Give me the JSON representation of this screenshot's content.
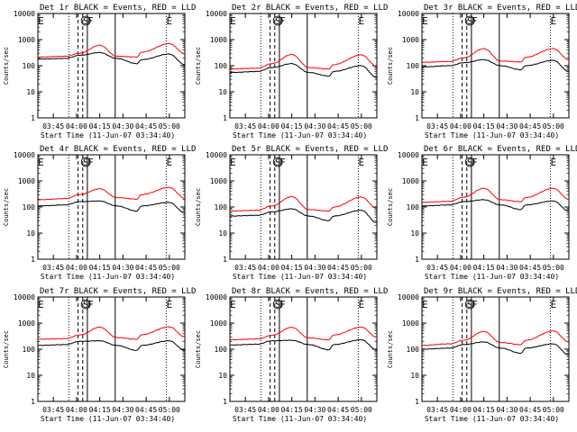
{
  "window_title": "",
  "chart_data": [
    {
      "type": "line",
      "title": "Det 1r BLACK = Events, RED = LLD",
      "ylabel": "Counts/sec",
      "xlabel": "Start Time (11-Jun-07 03:34:40)",
      "yscale": "log",
      "ylim": [
        1,
        10000
      ],
      "yticks": [
        "1",
        "10",
        "100",
        "1000",
        "10000"
      ],
      "xticks": [
        "03:45",
        "04:00",
        "04:15",
        "04:30",
        "04:45",
        "05:00"
      ],
      "markers": [
        "E",
        "S",
        "F",
        "E"
      ],
      "series": [
        {
          "color": "#ff0000",
          "values": [
            215,
            230,
            300,
            610,
            230,
            215,
            330,
            700,
            290
          ]
        },
        {
          "color": "#000000",
          "values": [
            180,
            190,
            250,
            320,
            190,
            120,
            170,
            280,
            110
          ]
        }
      ]
    },
    {
      "type": "line",
      "title": "Det 2r BLACK = Events, RED = LLD",
      "ylabel": "Counts/sec",
      "xlabel": "Start Time (11-Jun-07 03:34:40)",
      "yscale": "log",
      "ylim": [
        1,
        10000
      ],
      "yticks": [
        "1",
        "10",
        "100",
        "1000",
        "10000"
      ],
      "xticks": [
        "03:45",
        "04:00",
        "04:15",
        "04:30",
        "04:45",
        "05:00"
      ],
      "markers": [
        "E",
        "S",
        "F",
        "E"
      ],
      "series": [
        {
          "color": "#ff0000",
          "values": [
            75,
            80,
            120,
            270,
            85,
            75,
            110,
            260,
            95
          ]
        },
        {
          "color": "#000000",
          "values": [
            55,
            60,
            85,
            120,
            55,
            40,
            60,
            100,
            35
          ]
        }
      ]
    },
    {
      "type": "line",
      "title": "Det 3r BLACK = Events, RED = LLD",
      "ylabel": "Counts/sec",
      "xlabel": "Start Time (11-Jun-07 03:34:40)",
      "yscale": "log",
      "ylim": [
        1,
        10000
      ],
      "yticks": [
        "1",
        "10",
        "100",
        "1000",
        "10000"
      ],
      "xticks": [
        "03:45",
        "04:00",
        "04:15",
        "04:30",
        "04:45",
        "05:00"
      ],
      "markers": [
        "E",
        "S",
        "F",
        "E"
      ],
      "series": [
        {
          "color": "#ff0000",
          "values": [
            135,
            145,
            200,
            450,
            150,
            140,
            210,
            450,
            170
          ]
        },
        {
          "color": "#000000",
          "values": [
            90,
            100,
            130,
            170,
            100,
            70,
            100,
            160,
            60
          ]
        }
      ]
    },
    {
      "type": "line",
      "title": "Det 4r BLACK = Events, RED = LLD",
      "ylabel": "Counts/sec",
      "xlabel": "Start Time (11-Jun-07 03:34:40)",
      "yscale": "log",
      "ylim": [
        1,
        10000
      ],
      "yticks": [
        "1",
        "10",
        "100",
        "1000",
        "10000"
      ],
      "xticks": [
        "03:45",
        "04:00",
        "04:15",
        "04:30",
        "04:45",
        "05:00"
      ],
      "markers": [
        "E",
        "S",
        "F",
        "E"
      ],
      "series": [
        {
          "color": "#ff0000",
          "values": [
            190,
            210,
            300,
            500,
            230,
            200,
            300,
            560,
            220
          ]
        },
        {
          "color": "#000000",
          "values": [
            110,
            120,
            160,
            170,
            110,
            70,
            110,
            150,
            60
          ]
        }
      ]
    },
    {
      "type": "line",
      "title": "Det 5r BLACK = Events, RED = LLD",
      "ylabel": "Counts/sec",
      "xlabel": "Start Time (11-Jun-07 03:34:40)",
      "yscale": "log",
      "ylim": [
        1,
        10000
      ],
      "yticks": [
        "1",
        "10",
        "100",
        "1000",
        "10000"
      ],
      "xticks": [
        "03:45",
        "04:00",
        "04:15",
        "04:30",
        "04:45",
        "05:00"
      ],
      "markers": [
        "E",
        "S",
        "F",
        "E"
      ],
      "series": [
        {
          "color": "#ff0000",
          "values": [
            70,
            75,
            110,
            250,
            80,
            70,
            100,
            240,
            90
          ]
        },
        {
          "color": "#000000",
          "values": [
            45,
            48,
            65,
            85,
            45,
            30,
            45,
            75,
            25
          ]
        }
      ]
    },
    {
      "type": "line",
      "title": "Det 6r BLACK = Events, RED = LLD",
      "ylabel": "Counts/sec",
      "xlabel": "Start Time (11-Jun-07 03:34:40)",
      "yscale": "log",
      "ylim": [
        1,
        10000
      ],
      "yticks": [
        "1",
        "10",
        "100",
        "1000",
        "10000"
      ],
      "xticks": [
        "03:45",
        "04:00",
        "04:15",
        "04:30",
        "04:45",
        "05:00"
      ],
      "markers": [
        "E",
        "S",
        "F",
        "E"
      ],
      "series": [
        {
          "color": "#ff0000",
          "values": [
            150,
            165,
            240,
            520,
            190,
            160,
            230,
            520,
            200
          ]
        },
        {
          "color": "#000000",
          "values": [
            110,
            120,
            160,
            190,
            120,
            80,
            120,
            170,
            70
          ]
        }
      ]
    },
    {
      "type": "line",
      "title": "Det 7r BLACK = Events, RED = LLD",
      "ylabel": "Counts/sec",
      "xlabel": "Start Time (11-Jun-07 03:34:40)",
      "yscale": "log",
      "ylim": [
        1,
        10000
      ],
      "yticks": [
        "1",
        "10",
        "100",
        "1000",
        "10000"
      ],
      "xticks": [
        "03:45",
        "04:00",
        "04:15",
        "04:30",
        "04:45",
        "05:00"
      ],
      "markers": [
        "E",
        "S",
        "F",
        "E"
      ],
      "series": [
        {
          "color": "#ff0000",
          "values": [
            240,
            255,
            350,
            700,
            280,
            240,
            360,
            720,
            300
          ]
        },
        {
          "color": "#000000",
          "values": [
            140,
            150,
            200,
            210,
            140,
            90,
            140,
            210,
            90
          ]
        }
      ]
    },
    {
      "type": "line",
      "title": "Det 8r BLACK = Events, RED = LLD",
      "ylabel": "Counts/sec",
      "xlabel": "Start Time (11-Jun-07 03:34:40)",
      "yscale": "log",
      "ylim": [
        1,
        10000
      ],
      "yticks": [
        "1",
        "10",
        "100",
        "1000",
        "10000"
      ],
      "xticks": [
        "03:45",
        "04:00",
        "04:15",
        "04:30",
        "04:45",
        "05:00"
      ],
      "markers": [
        "E",
        "S",
        "F",
        "E"
      ],
      "series": [
        {
          "color": "#ff0000",
          "values": [
            230,
            245,
            340,
            690,
            270,
            230,
            350,
            700,
            290
          ]
        },
        {
          "color": "#000000",
          "values": [
            145,
            155,
            210,
            220,
            150,
            95,
            150,
            230,
            95
          ]
        }
      ]
    },
    {
      "type": "line",
      "title": "Det 9r BLACK = Events, RED = LLD",
      "ylabel": "Counts/sec",
      "xlabel": "Start Time (11-Jun-07 03:34:40)",
      "yscale": "log",
      "ylim": [
        1,
        10000
      ],
      "yticks": [
        "1",
        "10",
        "100",
        "1000",
        "10000"
      ],
      "xticks": [
        "03:45",
        "04:00",
        "04:15",
        "04:30",
        "04:45",
        "05:00"
      ],
      "markers": [
        "E",
        "S",
        "F",
        "E"
      ],
      "series": [
        {
          "color": "#ff0000",
          "values": [
            140,
            160,
            220,
            480,
            180,
            150,
            220,
            500,
            190
          ]
        },
        {
          "color": "#000000",
          "values": [
            100,
            110,
            150,
            190,
            110,
            70,
            110,
            160,
            60
          ]
        }
      ]
    }
  ]
}
